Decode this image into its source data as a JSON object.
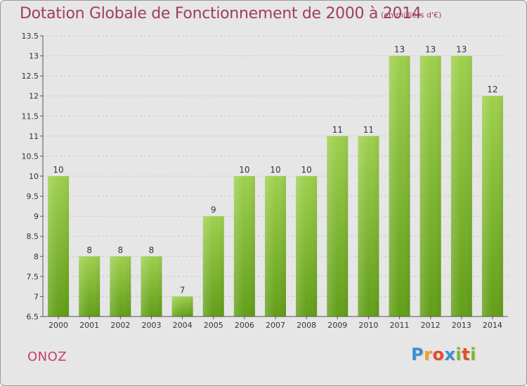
{
  "chart_data": {
    "type": "bar",
    "title": "Dotation Globale de Fonctionnement de 2000 à 2014",
    "subtitle": "(en milliers d'€)",
    "categories": [
      "2000",
      "2001",
      "2002",
      "2003",
      "2004",
      "2005",
      "2006",
      "2007",
      "2008",
      "2009",
      "2010",
      "2011",
      "2012",
      "2013",
      "2014"
    ],
    "values": [
      10,
      8,
      8,
      8,
      7,
      9,
      10,
      10,
      10,
      11,
      11,
      13,
      13,
      13,
      12
    ],
    "ylim": [
      6.5,
      13.5
    ],
    "yticks": [
      "6.5",
      "7",
      "7.5",
      "8",
      "8.5",
      "9",
      "9.5",
      "10",
      "10.5",
      "11",
      "11.5",
      "12",
      "12.5",
      "13",
      "13.5"
    ],
    "grid": true,
    "bar_color": "#7ab52e"
  },
  "footer": {
    "place_name": "ONOZ",
    "logo_letters": [
      "P",
      "r",
      "o",
      "x",
      "i",
      "t",
      "i"
    ],
    "logo_colors": [
      "#3a8fd0",
      "#f0a020",
      "#e0502a",
      "#3a8fd0",
      "#80b828",
      "#e0502a",
      "#80b828"
    ]
  }
}
